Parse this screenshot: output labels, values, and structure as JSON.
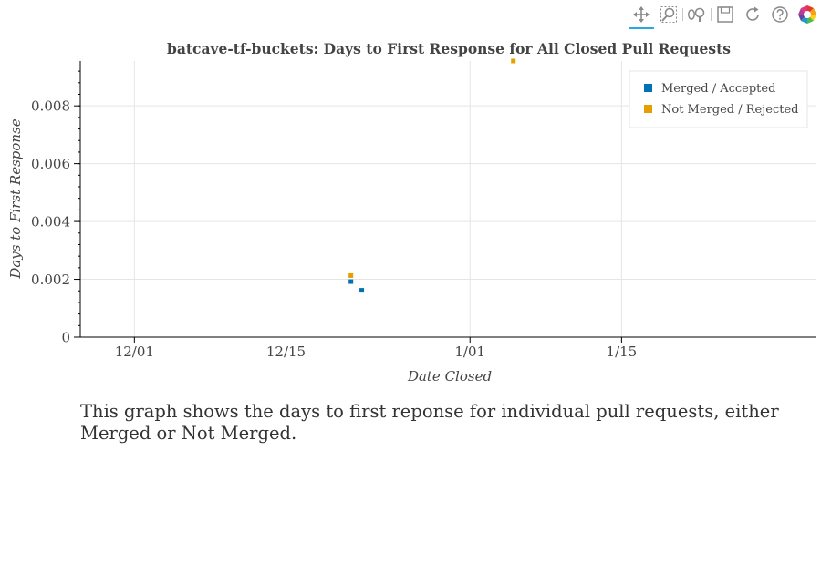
{
  "toolbar": {
    "tools": [
      {
        "name": "pan-tool",
        "icon": "move-icon",
        "active": true
      },
      {
        "name": "box-zoom-tool",
        "icon": "box-zoom-icon",
        "active": false
      },
      {
        "name": "wheel-zoom-tool",
        "icon": "wheel-zoom-icon",
        "active": false
      },
      {
        "name": "save-tool",
        "icon": "save-icon",
        "active": false
      },
      {
        "name": "reset-tool",
        "icon": "reset-icon",
        "active": false
      },
      {
        "name": "help-tool",
        "icon": "help-icon",
        "active": false
      },
      {
        "name": "bokeh-logo",
        "icon": "bokeh-logo-icon",
        "active": false
      }
    ]
  },
  "chart_data": {
    "type": "scatter",
    "title": "batcave-tf-buckets: Days to First Response for All Closed Pull Requests",
    "xlabel": "Date Closed",
    "ylabel": "Days to First Response",
    "x_is_date": true,
    "xlim": [
      "2022-11-26",
      "2023-02-02"
    ],
    "ylim": [
      0,
      0.00955
    ],
    "x_ticks": [
      {
        "value": "2022-12-01",
        "label": "12/01"
      },
      {
        "value": "2022-12-15",
        "label": "12/15"
      },
      {
        "value": "2023-01-01",
        "label": "1/01"
      },
      {
        "value": "2023-01-15",
        "label": "1/15"
      }
    ],
    "y_ticks": [
      {
        "value": 0,
        "label": "0"
      },
      {
        "value": 0.002,
        "label": "0.002"
      },
      {
        "value": 0.004,
        "label": "0.004"
      },
      {
        "value": 0.006,
        "label": "0.006"
      },
      {
        "value": 0.008,
        "label": "0.008"
      }
    ],
    "grid": true,
    "legend_position": "top-right",
    "series": [
      {
        "name": "Merged / Accepted",
        "color": "#0072b2",
        "points": [
          {
            "x": "2022-12-21",
            "y": 0.00192
          },
          {
            "x": "2022-12-22",
            "y": 0.00162
          }
        ]
      },
      {
        "name": "Not Merged / Rejected",
        "color": "#e69f00",
        "points": [
          {
            "x": "2022-12-21",
            "y": 0.00213
          },
          {
            "x": "2023-01-05",
            "y": 0.00955
          }
        ]
      }
    ]
  },
  "caption": "This graph shows the days to first reponse for individual pull requests, either Merged or Not Merged."
}
